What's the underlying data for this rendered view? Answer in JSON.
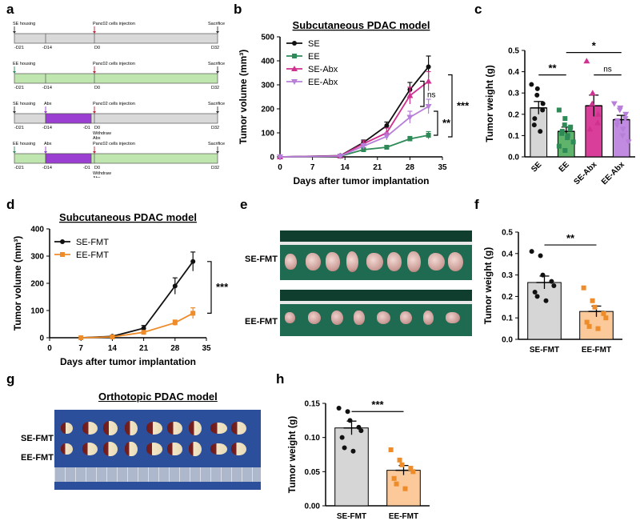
{
  "panel_labels": {
    "a": "a",
    "b": "b",
    "c": "c",
    "d": "d",
    "e": "e",
    "f": "f",
    "g": "g",
    "h": "h"
  },
  "colors": {
    "black": "#111111",
    "green": "#2e8b57",
    "magenta": "#d0308f",
    "violet": "#b77fd9",
    "orange": "#ee8c2a",
    "light_orange": "#fbc99a",
    "grey": "#d9d9d9",
    "light_green": "#bfe6ae",
    "bar_grey": "#d6d6d6",
    "bar_green": "#5fb36b",
    "bar_magenta": "#d93f9a",
    "bar_violet": "#c08be0"
  },
  "schedule": {
    "rows": [
      {
        "housing": "SE housing",
        "abx": "",
        "inj": "Panc02 cells injection",
        "sac": "Sacrifice",
        "d21": "-D21",
        "d14": "-D14",
        "d1": "",
        "d0": "D0",
        "d32": "D32",
        "withdraw": "",
        "bar": "grey",
        "purple": false
      },
      {
        "housing": "EE housing",
        "abx": "",
        "inj": "Panc02 cells injection",
        "sac": "Sacrifice",
        "d21": "-D21",
        "d14": "-D14",
        "d1": "",
        "d0": "D0",
        "d32": "D32",
        "withdraw": "",
        "bar": "green",
        "purple": false
      },
      {
        "housing": "SE housing",
        "abx": "Abx",
        "inj": "Panc02 cells injection",
        "sac": "Sacrifice",
        "d21": "-D21",
        "d14": "-D14",
        "d1": "-D1",
        "d0": "D0",
        "d32": "D32",
        "withdraw": "Withdraw Abx",
        "bar": "grey",
        "purple": true
      },
      {
        "housing": "EE housing",
        "abx": "Abx",
        "inj": "Panc02 cells injection",
        "sac": "Sacrifice",
        "d21": "-D21",
        "d14": "-D14",
        "d1": "-D1",
        "d0": "D0",
        "d32": "D32",
        "withdraw": "Withdraw Abx",
        "bar": "green",
        "purple": true
      }
    ]
  },
  "photos": {
    "e": {
      "row1": "SE-FMT",
      "row2": "EE-FMT"
    },
    "g": {
      "title": "Orthotopic PDAC model",
      "row1": "SE-FMT",
      "row2": "EE-FMT"
    }
  },
  "chart_data": [
    {
      "id": "b",
      "type": "line",
      "title": "Subcutaneous PDAC model",
      "xlabel": "Days after tumor implantation",
      "ylabel": "Tumor volume (mm³)",
      "xlim": [
        0,
        35
      ],
      "ylim": [
        0,
        500
      ],
      "xticks": [
        0,
        7,
        14,
        21,
        28,
        35
      ],
      "yticks": [
        0,
        100,
        200,
        300,
        400,
        500
      ],
      "x": [
        0,
        13,
        18,
        23,
        28,
        32
      ],
      "series": [
        {
          "name": "SE",
          "color": "#111111",
          "marker": "circle",
          "values": [
            0,
            5,
            60,
            130,
            280,
            375
          ],
          "err": [
            0,
            3,
            10,
            15,
            30,
            45
          ]
        },
        {
          "name": "EE",
          "color": "#2e8b57",
          "marker": "square",
          "values": [
            0,
            3,
            30,
            40,
            75,
            90
          ],
          "err": [
            0,
            2,
            6,
            8,
            10,
            15
          ]
        },
        {
          "name": "SE-Abx",
          "color": "#d0308f",
          "marker": "triangle",
          "values": [
            0,
            4,
            55,
            100,
            255,
            315
          ],
          "err": [
            0,
            3,
            12,
            20,
            35,
            40
          ]
        },
        {
          "name": "EE-Abx",
          "color": "#b77fd9",
          "marker": "triangle-down",
          "values": [
            0,
            3,
            45,
            85,
            165,
            210
          ],
          "err": [
            0,
            2,
            10,
            15,
            25,
            30
          ]
        }
      ],
      "annotations": {
        "ns": "ns",
        "sig1": "***",
        "sig2": "**"
      }
    },
    {
      "id": "c",
      "type": "bar",
      "ylabel": "Tumor weight (g)",
      "ylim": [
        0,
        0.5
      ],
      "yticks": [
        "0.0",
        "0.1",
        "0.2",
        "0.3",
        "0.4",
        "0.5"
      ],
      "categories": [
        "SE",
        "EE",
        "SE-Abx",
        "EE-Abx"
      ],
      "values": [
        0.23,
        0.12,
        0.24,
        0.175
      ],
      "err": [
        0.03,
        0.02,
        0.05,
        0.02
      ],
      "points": [
        [
          0.34,
          0.32,
          0.29,
          0.25,
          0.22,
          0.18,
          0.15,
          0.12
        ],
        [
          0.22,
          0.18,
          0.15,
          0.14,
          0.13,
          0.12,
          0.11,
          0.1,
          0.09,
          0.07,
          0.05,
          0.03
        ],
        [
          0.45,
          0.3,
          0.25,
          0.2,
          0.16,
          0.13
        ],
        [
          0.25,
          0.23,
          0.22,
          0.2,
          0.18,
          0.17,
          0.15,
          0.13,
          0.1,
          0.07
        ]
      ],
      "annotations": {
        "sig_se_ee": "**",
        "sig_ee_sea": "*",
        "ns": "ns"
      }
    },
    {
      "id": "d",
      "type": "line",
      "title": "Subcutaneous PDAC model",
      "xlabel": "Days after tumor implantation",
      "ylabel": "Tumor volume (mm³)",
      "xlim": [
        0,
        35
      ],
      "ylim": [
        0,
        400
      ],
      "xticks": [
        0,
        7,
        14,
        21,
        28,
        35
      ],
      "yticks": [
        0,
        100,
        200,
        300,
        400
      ],
      "x": [
        7,
        14,
        21,
        28,
        32
      ],
      "series": [
        {
          "name": "SE-FMT",
          "color": "#111111",
          "marker": "circle",
          "values": [
            0,
            5,
            35,
            190,
            280
          ],
          "err": [
            0,
            3,
            10,
            30,
            35
          ]
        },
        {
          "name": "EE-FMT",
          "color": "#ee8c2a",
          "marker": "square",
          "values": [
            0,
            3,
            20,
            55,
            90
          ],
          "err": [
            0,
            2,
            5,
            10,
            20
          ]
        }
      ],
      "annotations": {
        "sig": "***"
      }
    },
    {
      "id": "f",
      "type": "bar",
      "ylabel": "Tumor weight (g)",
      "ylim": [
        0,
        0.5
      ],
      "yticks": [
        "0.0",
        "0.1",
        "0.2",
        "0.3",
        "0.4",
        "0.5"
      ],
      "categories": [
        "SE-FMT",
        "EE-FMT"
      ],
      "values": [
        0.265,
        0.13
      ],
      "err": [
        0.03,
        0.025
      ],
      "points": [
        [
          0.41,
          0.39,
          0.3,
          0.27,
          0.25,
          0.22,
          0.2,
          0.18
        ],
        [
          0.24,
          0.18,
          0.15,
          0.12,
          0.1,
          0.08,
          0.06,
          0.05
        ]
      ],
      "annotations": {
        "sig": "**"
      }
    },
    {
      "id": "h",
      "type": "bar",
      "ylabel": "Tumor weight (g)",
      "ylim": [
        0,
        0.15
      ],
      "yticks": [
        "0.00",
        "0.05",
        "0.10",
        "0.15"
      ],
      "categories": [
        "SE-FMT",
        "EE-FMT"
      ],
      "values": [
        0.114,
        0.052
      ],
      "err": [
        0.01,
        0.007
      ],
      "points": [
        [
          0.143,
          0.138,
          0.125,
          0.115,
          0.11,
          0.1,
          0.085,
          0.08
        ],
        [
          0.082,
          0.067,
          0.06,
          0.055,
          0.05,
          0.04,
          0.032,
          0.025
        ]
      ],
      "annotations": {
        "sig": "***"
      }
    }
  ]
}
